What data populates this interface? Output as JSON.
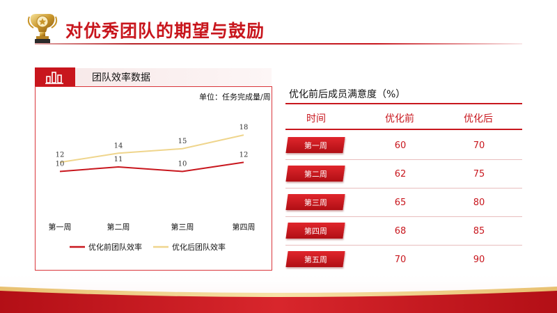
{
  "header": {
    "title": "对优秀团队的期望与鼓励"
  },
  "chart_panel": {
    "title": "团队效率数据",
    "unit": "单位：任务完成量/周"
  },
  "chart_data": {
    "type": "line",
    "categories": [
      "第一周",
      "第二周",
      "第三周",
      "第四周"
    ],
    "series": [
      {
        "name": "优化前团队效率",
        "values": [
          10,
          11,
          10,
          12
        ],
        "color": "#c8161d"
      },
      {
        "name": "优化后团队效率",
        "values": [
          12,
          14,
          15,
          18
        ],
        "color": "#efd58c"
      }
    ],
    "unit_label": "单位：任务完成量/周",
    "legend_position": "bottom",
    "grid": false
  },
  "table": {
    "title": "优化前后成员满意度（%）",
    "headers": [
      "时间",
      "优化前",
      "优化后"
    ],
    "rows": [
      {
        "label": "第一周",
        "before": "60",
        "after": "70"
      },
      {
        "label": "第二周",
        "before": "62",
        "after": "75"
      },
      {
        "label": "第三周",
        "before": "65",
        "after": "80"
      },
      {
        "label": "第四周",
        "before": "68",
        "after": "85"
      },
      {
        "label": "第五周",
        "before": "70",
        "after": "90"
      }
    ]
  },
  "icons": {
    "trophy": "trophy-icon",
    "chart": "bar-chart-icon"
  },
  "colors": {
    "accent": "#c8161d",
    "gold": "#efd58c"
  }
}
